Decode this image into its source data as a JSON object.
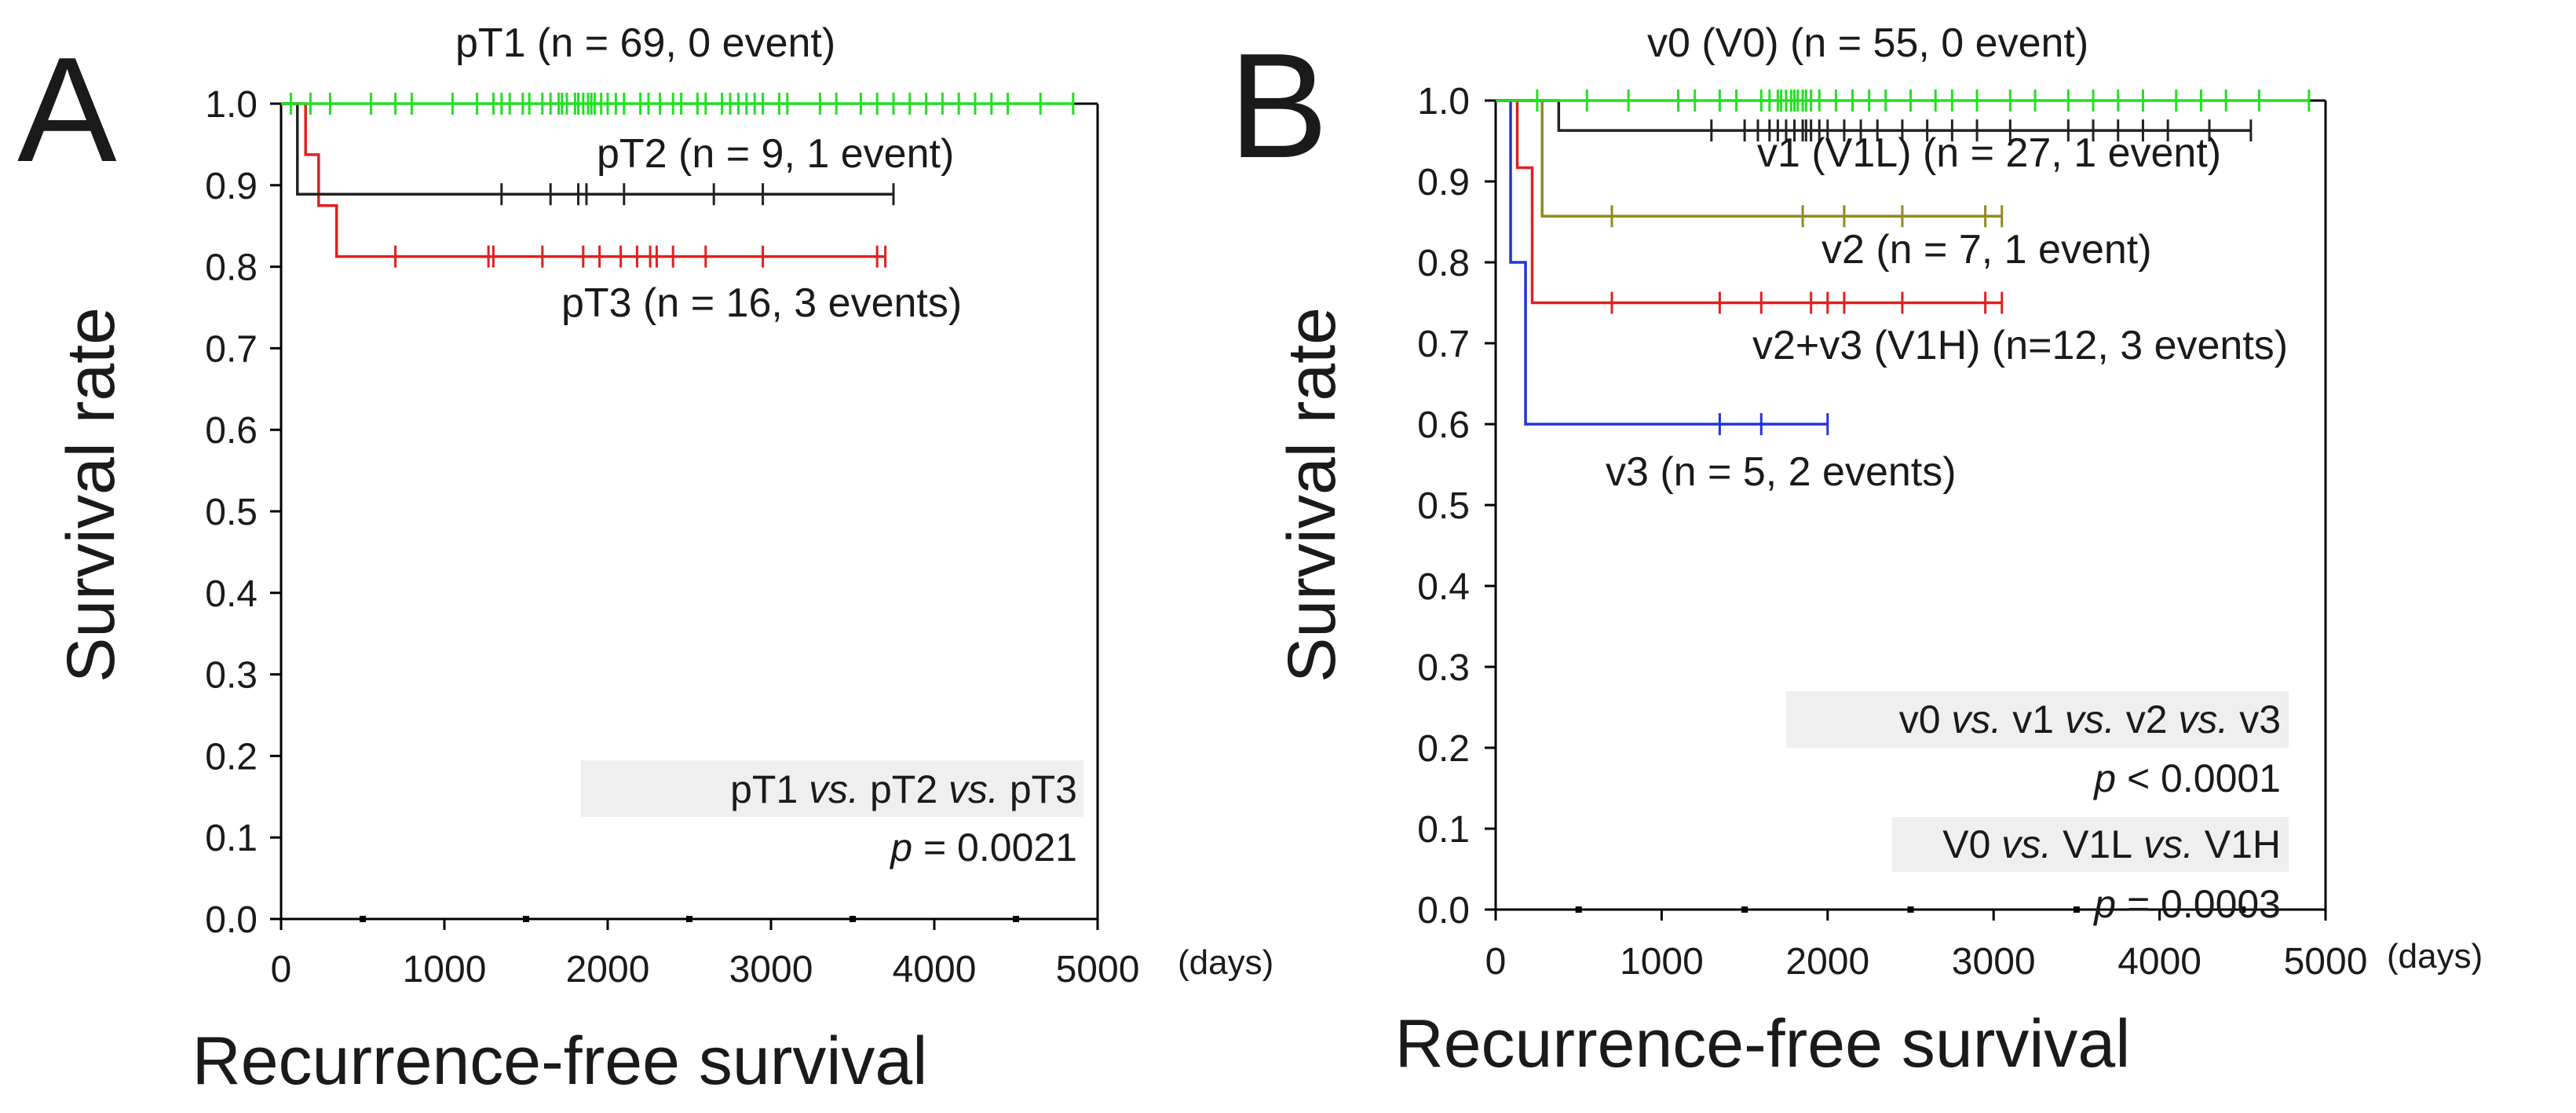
{
  "colors": {
    "pT1": "#22e022",
    "pT2": "#222222",
    "pT3": "#e02020",
    "v0": "#22e022",
    "v1": "#222222",
    "v2": "#8f8a1e",
    "v2v3": "#e02020",
    "v3": "#2233dd",
    "axis": "#000000",
    "text": "#1a1a1a",
    "statbox": "#efefef"
  },
  "chart_data": [
    {
      "type": "line",
      "panel_letter": "A",
      "title": "",
      "xlabel": "Recurrence-free survival",
      "ylabel": "Survival rate",
      "x_unit": "(days)",
      "xlim": [
        0,
        5000
      ],
      "ylim": [
        0,
        1.0
      ],
      "x_ticks": [
        "0",
        "1000",
        "2000",
        "3000",
        "4000",
        "5000"
      ],
      "y_ticks": [
        "0.0",
        "0.1",
        "0.2",
        "0.3",
        "0.4",
        "0.5",
        "0.6",
        "0.7",
        "0.8",
        "0.9",
        "1.0"
      ],
      "series": [
        {
          "name": "pT1",
          "label": "pT1 (n = 69, 0 event)",
          "color_key": "pT1",
          "steps": [
            [
              0,
              1.0
            ],
            [
              4850,
              1.0
            ]
          ],
          "censors": [
            60,
            180,
            300,
            550,
            700,
            800,
            1050,
            1200,
            1300,
            1350,
            1400,
            1480,
            1520,
            1600,
            1650,
            1700,
            1720,
            1750,
            1800,
            1820,
            1850,
            1880,
            1900,
            1920,
            1960,
            2000,
            2050,
            2100,
            2200,
            2250,
            2320,
            2400,
            2450,
            2550,
            2600,
            2700,
            2750,
            2800,
            2850,
            2900,
            2950,
            3050,
            3100,
            3300,
            3400,
            3550,
            3650,
            3750,
            3850,
            3950,
            4050,
            4150,
            4250,
            4350,
            4450,
            4650,
            4850
          ]
        },
        {
          "name": "pT2",
          "label": "pT2 (n = 9, 1 event)",
          "color_key": "pT2",
          "steps": [
            [
              0,
              1.0
            ],
            [
              100,
              1.0
            ],
            [
              100,
              0.889
            ],
            [
              3750,
              0.889
            ]
          ],
          "censors": [
            1350,
            1650,
            1820,
            1870,
            2100,
            2650,
            2950,
            3750
          ]
        },
        {
          "name": "pT3",
          "label": "pT3 (n = 16, 3 events)",
          "color_key": "pT3",
          "steps": [
            [
              0,
              1.0
            ],
            [
              150,
              1.0
            ],
            [
              150,
              0.9375
            ],
            [
              230,
              0.9375
            ],
            [
              230,
              0.875
            ],
            [
              340,
              0.875
            ],
            [
              340,
              0.8125
            ],
            [
              3700,
              0.8125
            ]
          ],
          "censors": [
            700,
            1270,
            1300,
            1600,
            1850,
            1950,
            2080,
            2180,
            2260,
            2300,
            2400,
            2600,
            2950,
            3650,
            3700
          ]
        }
      ],
      "stats": {
        "comparison": [
          "pT1",
          " vs. ",
          "pT2",
          " vs. ",
          "pT3"
        ],
        "p_label": "p",
        "p_value": " = 0.0021"
      }
    },
    {
      "type": "line",
      "panel_letter": "B",
      "title": "",
      "xlabel": "Recurrence-free survival",
      "ylabel": "Survival rate",
      "x_unit": "(days)",
      "xlim": [
        0,
        5000
      ],
      "ylim": [
        0,
        1.0
      ],
      "x_ticks": [
        "0",
        "1000",
        "2000",
        "3000",
        "4000",
        "5000"
      ],
      "y_ticks": [
        "0.0",
        "0.1",
        "0.2",
        "0.3",
        "0.4",
        "0.5",
        "0.6",
        "0.7",
        "0.8",
        "0.9",
        "1.0"
      ],
      "series": [
        {
          "name": "v0",
          "label": "v0 (V0) (n = 55, 0 event)",
          "color_key": "v0",
          "steps": [
            [
              0,
              1.0
            ],
            [
              4900,
              1.0
            ]
          ],
          "censors": [
            250,
            550,
            800,
            1100,
            1200,
            1350,
            1450,
            1600,
            1650,
            1700,
            1720,
            1750,
            1780,
            1800,
            1820,
            1850,
            1870,
            1900,
            1950,
            2050,
            2150,
            2250,
            2350,
            2500,
            2650,
            2750,
            2900,
            3100,
            3250,
            3450,
            3600,
            3750,
            3900,
            4100,
            4250,
            4400,
            4600,
            4900
          ]
        },
        {
          "name": "v1",
          "label": "v1 (V1L) (n = 27, 1 event)",
          "color_key": "v1",
          "steps": [
            [
              0,
              1.0
            ],
            [
              380,
              1.0
            ],
            [
              380,
              0.963
            ],
            [
              4550,
              0.963
            ]
          ],
          "censors": [
            1300,
            1500,
            1580,
            1650,
            1700,
            1750,
            1800,
            1850,
            1870,
            1900,
            1950,
            2000,
            2100,
            2200,
            2300,
            2450,
            2600,
            2750,
            2900,
            3100,
            3450,
            3600,
            3750,
            3900,
            4050,
            4300,
            4550
          ]
        },
        {
          "name": "v2",
          "label": "v2 (n = 7, 1 event)",
          "color_key": "v2",
          "steps": [
            [
              0,
              1.0
            ],
            [
              280,
              1.0
            ],
            [
              280,
              0.857
            ],
            [
              3050,
              0.857
            ]
          ],
          "censors": [
            700,
            1850,
            2100,
            2450,
            2950,
            3050
          ]
        },
        {
          "name": "v2+v3",
          "label": "v2+v3 (V1H) (n=12, 3 events)",
          "color_key": "v2v3",
          "steps": [
            [
              0,
              1.0
            ],
            [
              130,
              1.0
            ],
            [
              130,
              0.917
            ],
            [
              220,
              0.917
            ],
            [
              220,
              0.75
            ],
            [
              3050,
              0.75
            ]
          ],
          "censors": [
            700,
            1350,
            1600,
            1900,
            2000,
            2100,
            2450,
            2950,
            3050
          ]
        },
        {
          "name": "v3",
          "label": "v3 (n = 5, 2 events)",
          "color_key": "v3",
          "steps": [
            [
              0,
              1.0
            ],
            [
              90,
              1.0
            ],
            [
              90,
              0.8
            ],
            [
              180,
              0.8
            ],
            [
              180,
              0.6
            ],
            [
              2000,
              0.6
            ]
          ],
          "censors": [
            1350,
            1600,
            2000
          ]
        }
      ],
      "stats": {
        "comparison": [
          "v0",
          " vs. ",
          "v1",
          " vs. ",
          "v2",
          " vs. ",
          "v3"
        ],
        "p_label": "p",
        "p_value": " < 0.0001",
        "comparison2": [
          "V0",
          " vs. ",
          "V1L",
          " vs. ",
          "V1H"
        ],
        "p_value2": " = 0.0003"
      }
    }
  ]
}
